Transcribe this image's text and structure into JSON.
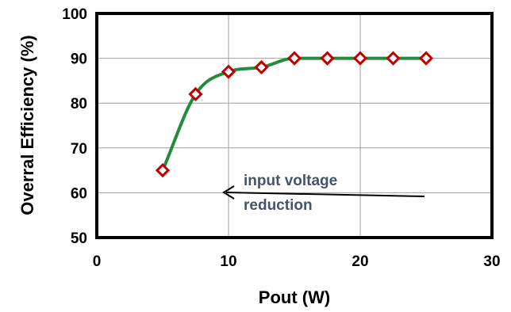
{
  "chart_data": {
    "type": "line",
    "xlabel": "Pout (W)",
    "ylabel": "Overral Efficiency (%)",
    "xlim": [
      0,
      30
    ],
    "ylim": [
      50,
      100
    ],
    "xticks": [
      0,
      10,
      20,
      30
    ],
    "yticks": [
      50,
      60,
      70,
      80,
      90,
      100
    ],
    "grid": true,
    "series": [
      {
        "x": [
          5,
          7.5,
          10,
          12.5,
          15,
          17.5,
          20,
          22.5,
          25
        ],
        "y": [
          65,
          82,
          87,
          88,
          90,
          90,
          90,
          90,
          90
        ],
        "line_color": "#228b3c",
        "marker": "diamond",
        "marker_color": "#c00000"
      }
    ],
    "annotation": {
      "lines": [
        "input voltage",
        "reduction"
      ],
      "color": "#44546a",
      "arrow": "pointing left"
    }
  }
}
